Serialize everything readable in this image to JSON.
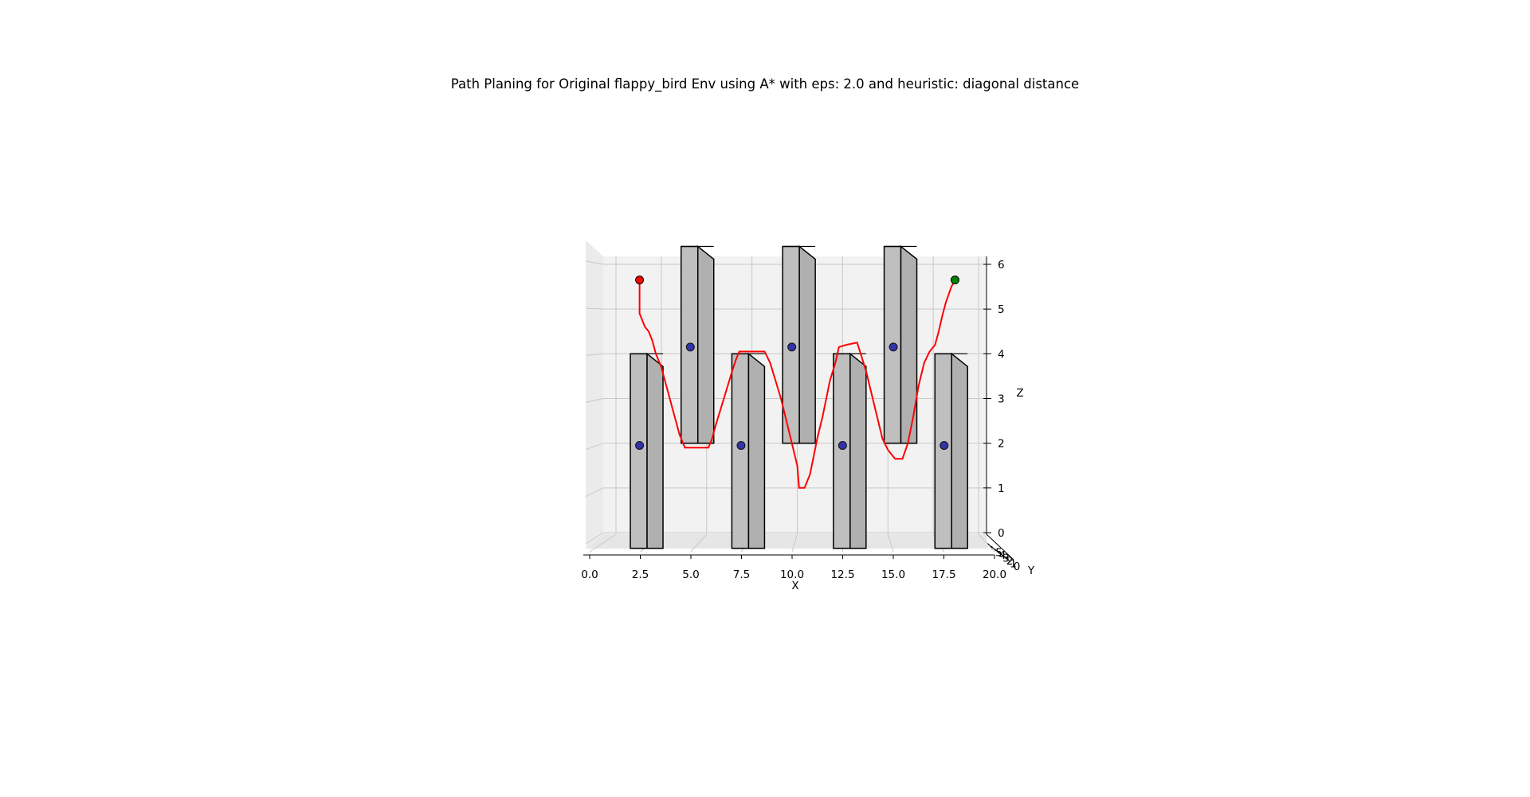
{
  "chart_data": {
    "type": "line",
    "title": "Path Planing for Original flappy_bird Env using A* with eps: 2.0 and heuristic: diagonal distance",
    "xlabel": "X",
    "ylabel": "Y",
    "zlabel": "Z",
    "xlim": [
      0,
      20
    ],
    "zlim": [
      0,
      6
    ],
    "x_ticks": [
      "0.0",
      "2.5",
      "5.0",
      "7.5",
      "10.0",
      "12.5",
      "15.0",
      "17.5",
      "20.0"
    ],
    "z_ticks": [
      "0",
      "1",
      "2",
      "3",
      "4",
      "5",
      "6"
    ],
    "y_ticks": [
      "0",
      "1",
      "2",
      "3",
      "4",
      "5"
    ],
    "grid": true,
    "colors": {
      "path": "#ff0000",
      "start": "#ff0000",
      "goal": "#008000",
      "pillar_center": "#3333aa",
      "pillar_fill": "#bfbfbf",
      "pane": "#f2f2f2"
    },
    "path": [
      [
        1.3,
        5.65
      ],
      [
        1.3,
        4.9
      ],
      [
        1.6,
        4.6
      ],
      [
        1.8,
        4.5
      ],
      [
        2.0,
        4.3
      ],
      [
        2.2,
        4.0
      ],
      [
        2.5,
        3.7
      ],
      [
        2.7,
        3.4
      ],
      [
        2.9,
        3.1
      ],
      [
        3.1,
        2.8
      ],
      [
        3.3,
        2.5
      ],
      [
        3.5,
        2.2
      ],
      [
        3.7,
        2.0
      ],
      [
        3.8,
        1.9
      ],
      [
        4.4,
        1.9
      ],
      [
        5.1,
        1.9
      ],
      [
        5.3,
        2.1
      ],
      [
        5.5,
        2.4
      ],
      [
        5.8,
        2.8
      ],
      [
        6.1,
        3.2
      ],
      [
        6.4,
        3.6
      ],
      [
        6.6,
        3.85
      ],
      [
        6.8,
        4.05
      ],
      [
        7.6,
        4.05
      ],
      [
        8.2,
        4.05
      ],
      [
        8.5,
        3.8
      ],
      [
        8.8,
        3.4
      ],
      [
        9.1,
        3.0
      ],
      [
        9.4,
        2.5
      ],
      [
        9.7,
        2.0
      ],
      [
        10.0,
        1.5
      ],
      [
        10.1,
        1.0
      ],
      [
        10.4,
        1.0
      ],
      [
        10.7,
        1.3
      ],
      [
        10.9,
        1.7
      ],
      [
        11.1,
        2.1
      ],
      [
        11.4,
        2.6
      ],
      [
        11.6,
        3.0
      ],
      [
        11.8,
        3.4
      ],
      [
        12.1,
        3.8
      ],
      [
        12.3,
        4.15
      ],
      [
        12.7,
        4.2
      ],
      [
        13.3,
        4.25
      ],
      [
        13.5,
        4.0
      ],
      [
        13.8,
        3.6
      ],
      [
        14.1,
        3.1
      ],
      [
        14.4,
        2.6
      ],
      [
        14.7,
        2.1
      ],
      [
        15.0,
        1.85
      ],
      [
        15.4,
        1.65
      ],
      [
        15.8,
        1.65
      ],
      [
        16.1,
        2.0
      ],
      [
        16.4,
        2.6
      ],
      [
        16.7,
        3.3
      ],
      [
        17.0,
        3.8
      ],
      [
        17.3,
        4.05
      ],
      [
        17.6,
        4.2
      ],
      [
        17.8,
        4.5
      ],
      [
        18.0,
        4.85
      ],
      [
        18.2,
        5.15
      ],
      [
        18.5,
        5.5
      ],
      [
        18.7,
        5.65
      ]
    ],
    "start": [
      1.3,
      5.65
    ],
    "goal": [
      18.7,
      5.65
    ],
    "pillar_centers": [
      [
        1.3,
        1.95
      ],
      [
        4.1,
        4.15
      ],
      [
        6.9,
        1.95
      ],
      [
        9.7,
        4.15
      ],
      [
        12.5,
        1.95
      ],
      [
        15.3,
        4.15
      ],
      [
        18.1,
        1.95
      ]
    ]
  }
}
